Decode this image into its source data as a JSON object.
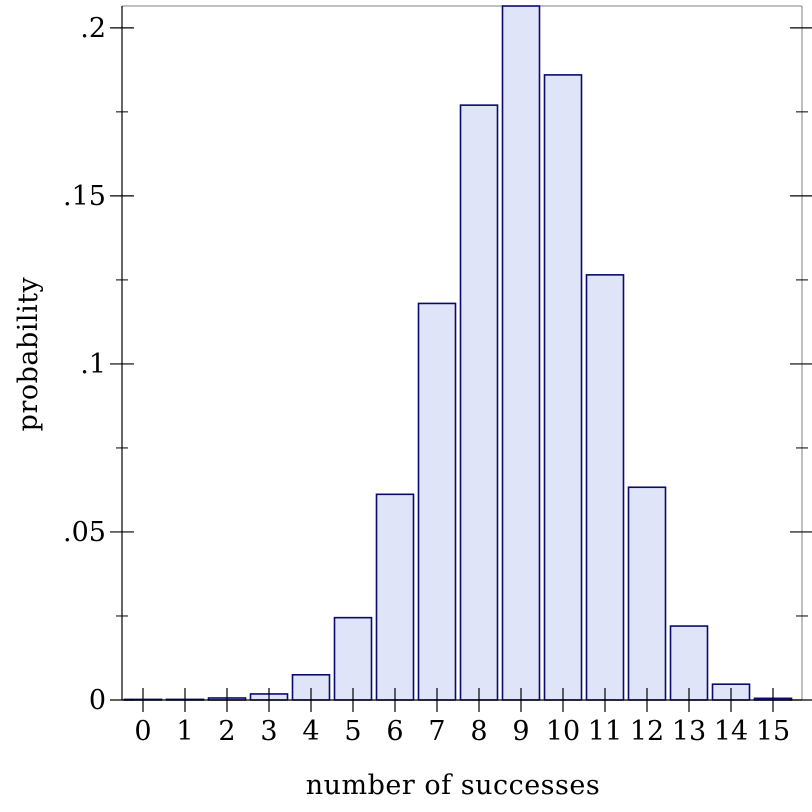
{
  "colors": {
    "bar_fill": "#e0e4f8",
    "bar_stroke": "#0a0a6e",
    "axis": "#000000",
    "frame": "#808080"
  },
  "chart_data": {
    "type": "bar",
    "title": "",
    "xlabel": "number of successes",
    "ylabel": "probability",
    "categories": [
      "0",
      "1",
      "2",
      "3",
      "4",
      "5",
      "6",
      "7",
      "8",
      "9",
      "10",
      "11",
      "12",
      "13",
      "14",
      "15"
    ],
    "values": [
      1e-05,
      0.0001,
      0.0006,
      0.0018,
      0.0075,
      0.0245,
      0.0612,
      0.118,
      0.177,
      0.2065,
      0.186,
      0.1265,
      0.0633,
      0.022,
      0.0047,
      0.0005
    ],
    "ylim": [
      0,
      0.2065
    ],
    "y_ticks": [
      {
        "value": 0,
        "label": "0"
      },
      {
        "value": 0.05,
        "label": ".05"
      },
      {
        "value": 0.1,
        "label": ".1"
      },
      {
        "value": 0.15,
        "label": ".15"
      },
      {
        "value": 0.2,
        "label": ".2"
      }
    ],
    "y_minor_ticks": [
      0.025,
      0.075,
      0.125,
      0.175
    ],
    "grid": false,
    "legend": "none"
  }
}
